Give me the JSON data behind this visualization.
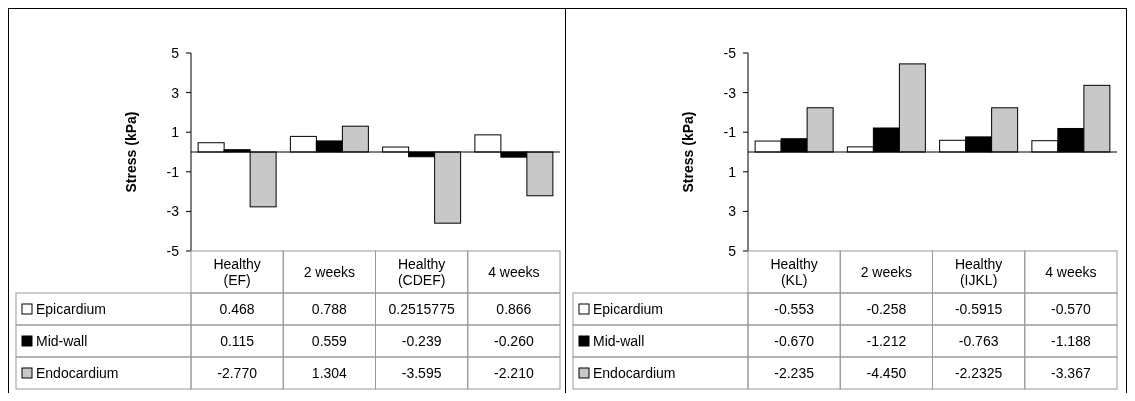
{
  "chart_data": [
    {
      "type": "bar",
      "ylabel": "Stress (kPa)",
      "categories": [
        "Healthy (EF)",
        "2 weeks",
        "Healthy (CDEF)",
        "4 weeks"
      ],
      "ylim": [
        -5,
        5
      ],
      "yticks": [
        -5,
        -3,
        -1,
        1,
        3,
        5
      ],
      "legend": "bottom left",
      "series": [
        {
          "name": "Epicardium",
          "color": "#ffffff",
          "values": [
            0.468,
            0.788,
            0.2515775,
            0.866
          ],
          "value_labels": [
            "0.468",
            "0.788",
            "0.2515775",
            "0.866"
          ]
        },
        {
          "name": "Mid-wall",
          "color": "#000000",
          "values": [
            0.115,
            0.559,
            -0.239,
            -0.26
          ],
          "value_labels": [
            "0.115",
            "0.559",
            "-0.239",
            "-0.260"
          ]
        },
        {
          "name": "Endocardium",
          "color": "#c8c8c8",
          "values": [
            -2.77,
            1.304,
            -3.595,
            -2.21
          ],
          "value_labels": [
            "-2.770",
            "1.304",
            "-3.595",
            "-2.210"
          ]
        }
      ]
    },
    {
      "type": "bar",
      "ylabel": "Stress (kPa)",
      "categories": [
        "Healthy (KL)",
        "2 weeks",
        "Healthy (IJKL)",
        "4 weeks"
      ],
      "ylim": [
        5,
        -5
      ],
      "yticks": [
        5,
        3,
        1,
        -1,
        -3,
        -5
      ],
      "legend": "bottom left",
      "series": [
        {
          "name": "Epicardium",
          "color": "#ffffff",
          "values": [
            -0.553,
            -0.258,
            -0.5915,
            -0.57
          ],
          "value_labels": [
            "-0.553",
            "-0.258",
            "-0.5915",
            "-0.570"
          ]
        },
        {
          "name": "Mid-wall",
          "color": "#000000",
          "values": [
            -0.67,
            -1.212,
            -0.763,
            -1.188
          ],
          "value_labels": [
            "-0.670",
            "-1.212",
            "-0.763",
            "-1.188"
          ]
        },
        {
          "name": "Endocardium",
          "color": "#c8c8c8",
          "values": [
            -2.235,
            -4.45,
            -2.2325,
            -3.367
          ],
          "value_labels": [
            "-2.235",
            "-4.450",
            "-2.2325",
            "-3.367"
          ]
        }
      ]
    }
  ]
}
